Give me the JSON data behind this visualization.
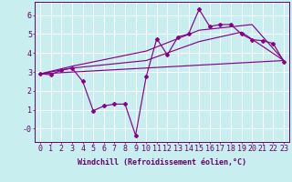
{
  "background_color": "#c8eef0",
  "grid_color": "#aadddd",
  "line_color": "#880088",
  "xlabel": "Windchill (Refroidissement éolien,°C)",
  "xlim": [
    -0.5,
    23.5
  ],
  "ylim": [
    -0.7,
    6.7
  ],
  "yticks": [
    0,
    1,
    2,
    3,
    4,
    5,
    6
  ],
  "ytick_labels": [
    "-0",
    "1",
    "2",
    "3",
    "4",
    "5",
    "6"
  ],
  "xticks": [
    0,
    1,
    2,
    3,
    4,
    5,
    6,
    7,
    8,
    9,
    10,
    11,
    12,
    13,
    14,
    15,
    16,
    17,
    18,
    19,
    20,
    21,
    22,
    23
  ],
  "line1_x": [
    0,
    1,
    2,
    3,
    4,
    5,
    6,
    7,
    8,
    9,
    10,
    11,
    12,
    13,
    14,
    15,
    16,
    17,
    18,
    19,
    20,
    21,
    22,
    23
  ],
  "line1_y": [
    2.9,
    2.85,
    3.1,
    3.2,
    2.5,
    0.95,
    1.2,
    1.3,
    1.3,
    -0.35,
    2.75,
    4.75,
    3.9,
    4.85,
    5.0,
    6.3,
    5.4,
    5.5,
    5.5,
    5.0,
    4.7,
    4.65,
    4.5,
    3.55
  ],
  "line2_x": [
    0,
    23
  ],
  "line2_y": [
    2.9,
    3.6
  ],
  "line3_x": [
    0,
    3,
    10,
    15,
    19,
    23
  ],
  "line3_y": [
    2.9,
    3.2,
    3.6,
    4.6,
    5.1,
    3.6
  ],
  "line4_x": [
    0,
    3,
    10,
    15,
    20,
    23
  ],
  "line4_y": [
    2.9,
    3.3,
    4.1,
    5.2,
    5.5,
    3.6
  ],
  "font_color": "#660066",
  "font_size_label": 6,
  "font_size_tick": 6
}
